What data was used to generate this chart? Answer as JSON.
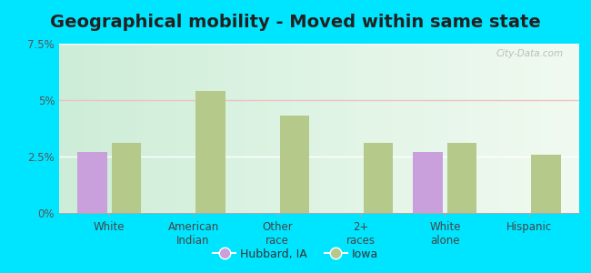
{
  "title": "Geographical mobility - Moved within same state",
  "categories": [
    "White",
    "American\nIndian",
    "Other\nrace",
    "2+\nraces",
    "White\nalone",
    "Hispanic"
  ],
  "hubbard_values": [
    2.7,
    0,
    0,
    0,
    2.7,
    0
  ],
  "iowa_values": [
    3.1,
    5.4,
    4.3,
    3.1,
    3.1,
    2.6
  ],
  "hubbard_color": "#c9a0dc",
  "iowa_color": "#b5c98a",
  "ylim": [
    0,
    7.5
  ],
  "yticks": [
    0,
    2.5,
    5.0,
    7.5
  ],
  "ytick_labels": [
    "0%",
    "2.5%",
    "5%",
    "7.5%"
  ],
  "outer_background": "#00e5ff",
  "title_fontsize": 14,
  "bar_width": 0.35,
  "legend_labels": [
    "Hubbard, IA",
    "Iowa"
  ],
  "watermark": "City-Data.com"
}
